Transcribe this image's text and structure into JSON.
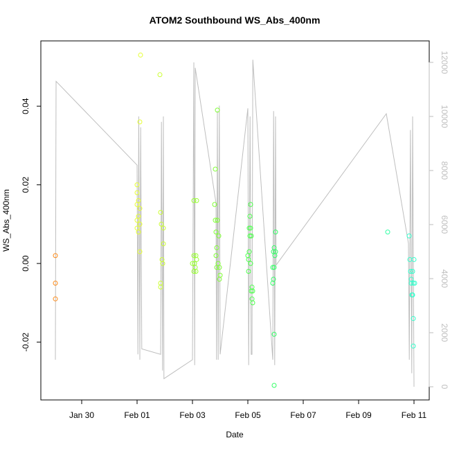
{
  "chart_data": {
    "type": "scatter",
    "title": "ATOM2 Southbound WS_Abs_400nm",
    "x_label": "Date",
    "y_label": "WS_Abs_400nm",
    "xlim": [
      28.525,
      42.55
    ],
    "xticks": [
      {
        "value": 30,
        "label": "Jan 30"
      },
      {
        "value": 32,
        "label": "Feb 01"
      },
      {
        "value": 34,
        "label": "Feb 03"
      },
      {
        "value": 36,
        "label": "Feb 05"
      },
      {
        "value": 38,
        "label": "Feb 07"
      },
      {
        "value": 40,
        "label": "Feb 09"
      },
      {
        "value": 42,
        "label": "Feb 11"
      }
    ],
    "ylim": [
      -0.0347,
      0.0566
    ],
    "yticks": [
      {
        "value": -0.02,
        "label": "-0.02"
      },
      {
        "value": 0,
        "label": "0.00"
      },
      {
        "value": 0.02,
        "label": "0.02"
      },
      {
        "value": 0.04,
        "label": "0.04"
      }
    ],
    "y2lim": [
      -487,
      12795
    ],
    "y2ticks": [
      0,
      2000,
      4000,
      6000,
      8000,
      10000,
      12000
    ],
    "series": [
      {
        "color": "#ff8c1a",
        "x": [
          29.05,
          29.05,
          29.05
        ],
        "values": [
          0.002,
          -0.005,
          -0.009
        ]
      },
      {
        "color": "#e6ff33",
        "x": [
          32.125,
          32.1,
          32.0,
          32.05,
          32.0,
          32.1,
          32.05,
          32.0,
          32.1,
          32.0,
          32.05,
          32.1,
          32.0
        ],
        "values": [
          0.053,
          0.036,
          0.018,
          0.016,
          0.015,
          0.014,
          0.012,
          0.011,
          0.01,
          0.009,
          0.008,
          0.003,
          0.02
        ]
      },
      {
        "color": "#ccff33",
        "x": [
          32.825,
          32.85,
          32.875,
          32.95,
          32.9,
          32.925,
          32.85,
          32.85,
          32.95
        ],
        "values": [
          0.048,
          0.013,
          0.01,
          0.009,
          0.001,
          0.0,
          -0.005,
          -0.006,
          0.005
        ]
      },
      {
        "color": "#99ff33",
        "x": [
          34.05,
          34.15,
          34.05,
          34.125,
          34.0,
          34.075,
          34.1,
          34.05,
          34.125,
          34.15
        ],
        "values": [
          0.016,
          0.016,
          0.002,
          0.002,
          0.0,
          0.0,
          -0.001,
          -0.002,
          -0.002,
          0.001
        ]
      },
      {
        "color": "#7fff33",
        "x": [
          34.825,
          34.8,
          34.9,
          34.825,
          34.9,
          34.85,
          34.95,
          34.875,
          34.85,
          34.925,
          34.875,
          34.975,
          35.0,
          34.975
        ],
        "values": [
          0.024,
          0.015,
          0.039,
          0.011,
          0.011,
          0.008,
          0.007,
          0.004,
          0.002,
          0.0,
          -0.001,
          -0.001,
          -0.003,
          -0.004
        ]
      },
      {
        "color": "#4dff4d",
        "x": [
          36.1,
          36.075,
          36.05,
          36.1,
          36.075,
          36.125,
          36.0,
          36.05,
          36.025,
          36.1,
          36.025,
          36.15,
          36.175,
          36.125,
          36.15,
          36.175
        ],
        "values": [
          0.015,
          0.012,
          0.009,
          0.009,
          0.007,
          0.007,
          0.002,
          0.003,
          0.001,
          0.0,
          -0.002,
          -0.006,
          -0.007,
          -0.007,
          -0.009,
          -0.01
        ]
      },
      {
        "color": "#33ff66",
        "x": [
          37.0,
          36.95,
          36.925,
          37.0,
          36.975,
          36.95,
          36.9,
          36.925,
          36.9,
          36.95,
          36.95
        ],
        "values": [
          0.008,
          0.004,
          0.003,
          0.003,
          0.002,
          -0.001,
          -0.001,
          -0.004,
          -0.005,
          -0.018,
          -0.031
        ]
      },
      {
        "color": "#33ffa6",
        "x": [
          41.05
        ],
        "values": [
          0.008
        ]
      },
      {
        "color": "#33ffcc",
        "x": [
          41.825,
          41.85,
          42.0,
          41.875,
          41.95,
          41.9,
          41.975,
          41.9,
          42.025,
          41.95,
          41.925,
          41.975,
          41.975
        ],
        "values": [
          0.007,
          0.001,
          0.001,
          -0.002,
          -0.002,
          -0.004,
          -0.005,
          -0.005,
          -0.005,
          -0.008,
          -0.008,
          -0.014,
          -0.021
        ]
      },
      {
        "type": "line",
        "axis": "y2",
        "color": "#bebebe",
        "x": [
          29.05,
          29.075,
          32.0,
          32.03,
          32.06,
          32.1,
          32.13,
          32.17,
          32.85,
          32.88,
          32.92,
          32.95,
          32.97,
          34.0,
          34.05,
          34.08,
          34.1,
          34.85,
          34.87,
          34.9,
          34.93,
          34.97,
          35.0,
          36.0,
          36.03,
          36.08,
          36.12,
          36.15,
          36.18,
          36.9,
          36.93,
          36.97,
          37.0,
          37.02,
          41.0,
          41.8,
          41.83,
          41.87,
          41.92,
          41.95,
          42.0
        ],
        "values": [
          1000,
          11300,
          8200,
          1200,
          10000,
          1000,
          9600,
          1400,
          1200,
          9800,
          600,
          10000,
          300,
          1000,
          12000,
          800,
          11800,
          6800,
          1000,
          10200,
          1000,
          10400,
          1200,
          10300,
          800,
          10000,
          1200,
          1200,
          12100,
          1000,
          10200,
          800,
          10000,
          4500,
          10100,
          5300,
          1000,
          9500,
          500,
          10000,
          0
        ]
      }
    ]
  }
}
